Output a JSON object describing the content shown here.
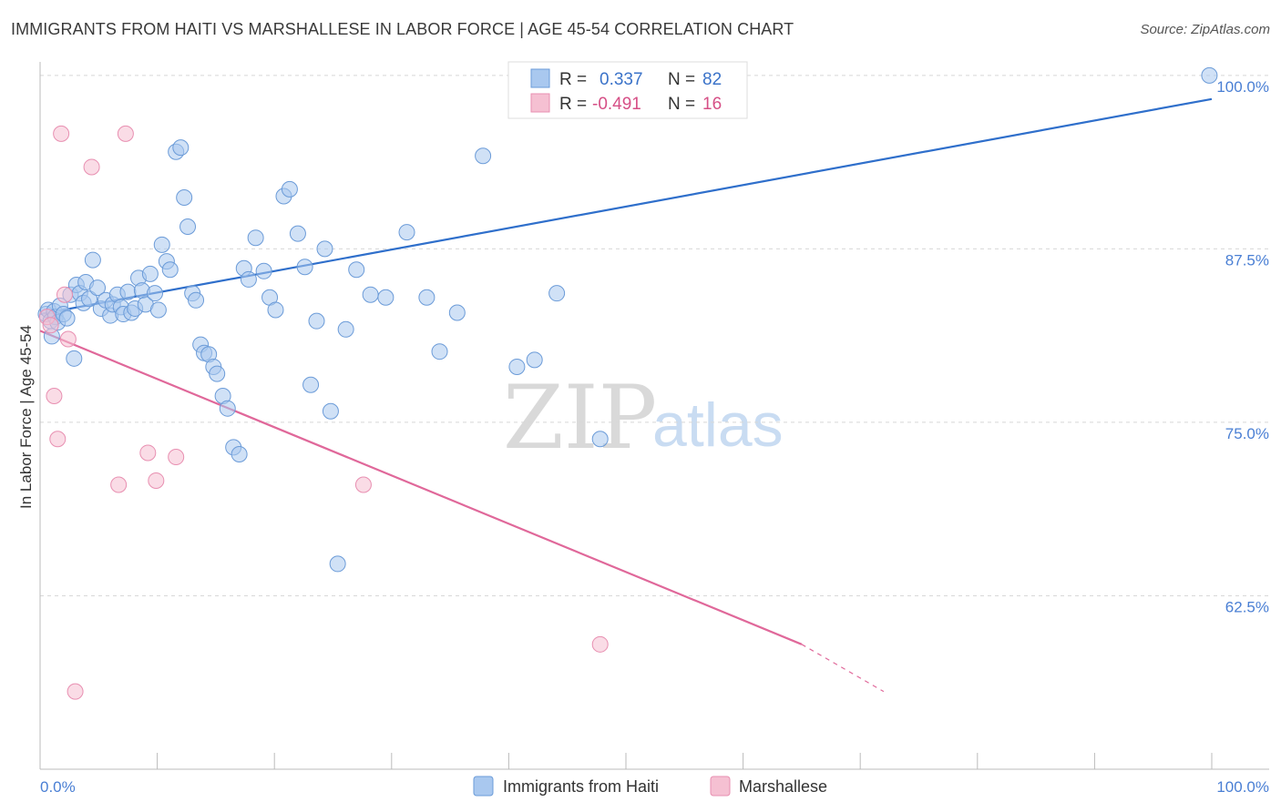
{
  "header": {
    "title": "IMMIGRANTS FROM HAITI VS MARSHALLESE IN LABOR FORCE | AGE 45-54 CORRELATION CHART",
    "source": "Source: ZipAtlas.com"
  },
  "watermark": {
    "zip": "ZIP",
    "atlas": "atlas"
  },
  "colors": {
    "blue_fill": "#a9c8ef",
    "blue_stroke": "#6b9bd8",
    "blue_line": "#2f6fcb",
    "pink_fill": "#f5c0d2",
    "pink_stroke": "#e88fb1",
    "pink_line": "#e0689a",
    "tick_text": "#4a7fd4",
    "grid": "#d8d8d8"
  },
  "legend_box": {
    "r_label": "R =",
    "n_label": "N =",
    "rows": [
      {
        "r": "0.337",
        "n": "82",
        "color_key": "blue"
      },
      {
        "r": "-0.491",
        "n": "16",
        "color_key": "pink"
      }
    ]
  },
  "chart_data": {
    "type": "scatter",
    "title": "IMMIGRANTS FROM HAITI VS MARSHALLESE IN LABOR FORCE | AGE 45-54 CORRELATION CHART",
    "xlabel": "",
    "ylabel": "In Labor Force | Age 45-54",
    "xlim": [
      0,
      100
    ],
    "ylim": [
      50.0,
      101.5
    ],
    "x_tick_labels": {
      "left": "0.0%",
      "right": "100.0%"
    },
    "y_ticks": [
      {
        "value": 100.0,
        "label": "100.0%"
      },
      {
        "value": 87.5,
        "label": "87.5%"
      },
      {
        "value": 75.0,
        "label": "75.0%"
      },
      {
        "value": 62.5,
        "label": "62.5%"
      }
    ],
    "series": [
      {
        "name": "Immigrants from Haiti",
        "color_key": "blue",
        "r": 0.337,
        "n": 82,
        "trend": {
          "x": [
            0,
            100
          ],
          "y": [
            82.8,
            98.3
          ],
          "dashed_from": null
        },
        "points": [
          [
            0.5,
            82.8
          ],
          [
            0.7,
            83.1
          ],
          [
            0.9,
            82.3
          ],
          [
            1.0,
            81.2
          ],
          [
            1.2,
            83.0
          ],
          [
            1.3,
            82.6
          ],
          [
            1.5,
            82.2
          ],
          [
            1.7,
            83.4
          ],
          [
            2.0,
            82.8
          ],
          [
            2.3,
            82.5
          ],
          [
            2.6,
            84.2
          ],
          [
            2.9,
            79.6
          ],
          [
            3.1,
            84.9
          ],
          [
            3.4,
            84.3
          ],
          [
            3.7,
            83.6
          ],
          [
            3.9,
            85.1
          ],
          [
            4.2,
            83.9
          ],
          [
            4.5,
            86.7
          ],
          [
            4.9,
            84.7
          ],
          [
            5.2,
            83.2
          ],
          [
            5.6,
            83.8
          ],
          [
            6.0,
            82.7
          ],
          [
            6.2,
            83.5
          ],
          [
            6.6,
            84.2
          ],
          [
            6.9,
            83.3
          ],
          [
            7.1,
            82.8
          ],
          [
            7.5,
            84.4
          ],
          [
            7.8,
            82.9
          ],
          [
            8.1,
            83.2
          ],
          [
            8.4,
            85.4
          ],
          [
            8.7,
            84.5
          ],
          [
            9.0,
            83.5
          ],
          [
            9.4,
            85.7
          ],
          [
            9.8,
            84.3
          ],
          [
            10.1,
            83.1
          ],
          [
            10.4,
            87.8
          ],
          [
            10.8,
            86.6
          ],
          [
            11.1,
            86.0
          ],
          [
            11.6,
            94.5
          ],
          [
            12.0,
            94.8
          ],
          [
            12.3,
            91.2
          ],
          [
            12.6,
            89.1
          ],
          [
            13.0,
            84.3
          ],
          [
            13.3,
            83.8
          ],
          [
            13.7,
            80.6
          ],
          [
            14.0,
            80.0
          ],
          [
            14.4,
            79.9
          ],
          [
            14.8,
            79.0
          ],
          [
            15.1,
            78.5
          ],
          [
            15.6,
            76.9
          ],
          [
            16.0,
            76.0
          ],
          [
            16.5,
            73.2
          ],
          [
            17.0,
            72.7
          ],
          [
            17.4,
            86.1
          ],
          [
            17.8,
            85.3
          ],
          [
            18.4,
            88.3
          ],
          [
            19.1,
            85.9
          ],
          [
            19.6,
            84.0
          ],
          [
            20.1,
            83.1
          ],
          [
            20.8,
            91.3
          ],
          [
            21.3,
            91.8
          ],
          [
            22.0,
            88.6
          ],
          [
            22.6,
            86.2
          ],
          [
            23.1,
            77.7
          ],
          [
            23.6,
            82.3
          ],
          [
            24.3,
            87.5
          ],
          [
            24.8,
            75.8
          ],
          [
            25.4,
            64.8
          ],
          [
            26.1,
            81.7
          ],
          [
            27.0,
            86.0
          ],
          [
            28.2,
            84.2
          ],
          [
            29.5,
            84.0
          ],
          [
            31.3,
            88.7
          ],
          [
            33.0,
            84.0
          ],
          [
            34.1,
            80.1
          ],
          [
            35.6,
            82.9
          ],
          [
            37.8,
            94.2
          ],
          [
            40.7,
            79.0
          ],
          [
            42.2,
            79.5
          ],
          [
            44.1,
            84.3
          ],
          [
            47.8,
            73.8
          ],
          [
            99.8,
            100.0
          ]
        ]
      },
      {
        "name": "Marshallese",
        "color_key": "pink",
        "r": -0.491,
        "n": 16,
        "trend": {
          "x": [
            0,
            65.0
          ],
          "y": [
            81.6,
            59.0
          ],
          "dashed_to": {
            "x": 72.0,
            "y": 55.6
          }
        },
        "points": [
          [
            0.6,
            82.6
          ],
          [
            0.9,
            82.0
          ],
          [
            1.2,
            76.9
          ],
          [
            1.5,
            73.8
          ],
          [
            1.8,
            95.8
          ],
          [
            2.1,
            84.2
          ],
          [
            2.4,
            81.0
          ],
          [
            3.0,
            55.6
          ],
          [
            4.4,
            93.4
          ],
          [
            6.7,
            70.5
          ],
          [
            7.3,
            95.8
          ],
          [
            9.2,
            72.8
          ],
          [
            9.9,
            70.8
          ],
          [
            11.6,
            72.5
          ],
          [
            27.6,
            70.5
          ],
          [
            47.8,
            59.0
          ]
        ]
      }
    ],
    "legend": [
      "Immigrants from Haiti",
      "Marshallese"
    ]
  }
}
